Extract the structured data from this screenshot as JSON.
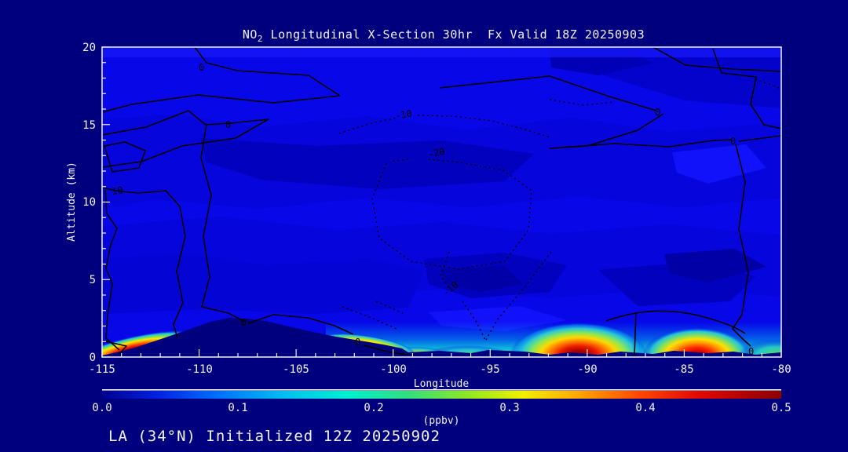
{
  "colors": {
    "background": "#00007E",
    "plot_base_blue": "#0707E8",
    "frame": "#F2F2F2",
    "text": "#F2F2F2",
    "contour_line": "#000000",
    "hotspot_max": "#8B0000"
  },
  "title": {
    "prefix": "NO",
    "subscript": "2",
    "rest": " Longitudinal X-Section 30hr  Fx Valid 18Z 20250903"
  },
  "axes": {
    "x": {
      "label": "Longitude",
      "ticks": [
        "-115",
        "-110",
        "-105",
        "-100",
        "-95",
        "-90",
        "-85",
        "-80"
      ]
    },
    "y": {
      "label": "Altitude (km)",
      "ticks": [
        "20",
        "15",
        "10",
        "5",
        "0"
      ]
    }
  },
  "colorbar": {
    "unit": "(ppbv)",
    "ticks": [
      "0.0",
      "0.1",
      "0.2",
      "0.3",
      "0.4",
      "0.5"
    ],
    "stops": [
      "#000090",
      "#0020E0",
      "#0070FF",
      "#00C0F0",
      "#00F0D0",
      "#30E080",
      "#90E820",
      "#F0F000",
      "#FFA800",
      "#FF4800",
      "#E00800",
      "#8B0000"
    ]
  },
  "contour_labels": {
    "zero": "0",
    "ten": "10",
    "minus_ten": "-10",
    "minus_twenty": "-20"
  },
  "footer": {
    "text": "LA (34°N) Initialized 12Z 20250902"
  },
  "chart_data": {
    "type": "heatmap",
    "title": "NO2 Longitudinal X-Section 30hr  Fx Valid 18Z 20250903",
    "xlabel": "Longitude",
    "ylabel": "Altitude (km)",
    "xlim": [
      -115,
      -80
    ],
    "ylim": [
      0,
      20
    ],
    "x_major_ticks": [
      -115,
      -110,
      -105,
      -100,
      -95,
      -90,
      -85,
      -80
    ],
    "y_major_ticks": [
      0,
      5,
      10,
      15,
      20
    ],
    "colorbar": {
      "label": "(ppbv)",
      "range": [
        0.0,
        0.5
      ],
      "ticks": [
        0.0,
        0.1,
        0.2,
        0.3,
        0.4,
        0.5
      ],
      "palette": "rainbow dark-blue to dark-red"
    },
    "field": "NO2 mixing ratio cross-section at 34N; free troposphere mostly < 0.05 ppbv (blue shades), enhancements confined below ~2 km",
    "surface_maxima": [
      {
        "longitude": -113.8,
        "altitude_km": 0.3,
        "value_ppbv": 0.45
      },
      {
        "longitude": -101.5,
        "altitude_km": 0.5,
        "value_ppbv": 0.3
      },
      {
        "longitude": -90.5,
        "altitude_km": 0.2,
        "value_ppbv": 0.5
      },
      {
        "longitude": -84.5,
        "altitude_km": 0.2,
        "value_ppbv": 0.45
      },
      {
        "longitude": -80.5,
        "altitude_km": 0.2,
        "value_ppbv": 0.2
      }
    ],
    "overlay_contours": {
      "solid_levels": [
        0,
        10
      ],
      "dotted_levels": [
        -20,
        -10
      ]
    },
    "terrain": "dark surface ridge peaking near 2 km around longitude -108, low terrain steps eastward",
    "annotation": "LA (34N) Initialized 12Z 20250902"
  }
}
